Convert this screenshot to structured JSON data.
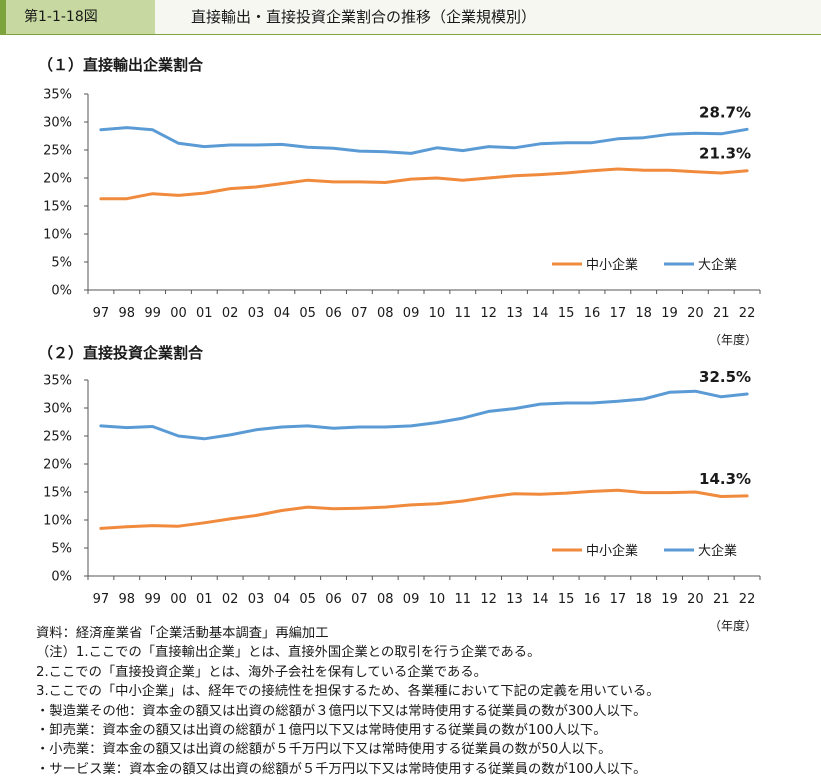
{
  "header": {
    "figure_number": "第1-1-18図",
    "title": "直接輸出・直接投資企業割合の推移（企業規模別）"
  },
  "colors": {
    "sme": "#f08a3c",
    "large": "#5b9bd5",
    "axis": "#555555",
    "text": "#1a1a1a"
  },
  "chart_data": [
    {
      "type": "line",
      "title": "（１）直接輸出企業割合",
      "categories": [
        "97",
        "98",
        "99",
        "00",
        "01",
        "02",
        "03",
        "04",
        "05",
        "06",
        "07",
        "08",
        "09",
        "10",
        "11",
        "12",
        "13",
        "14",
        "15",
        "16",
        "17",
        "18",
        "19",
        "20",
        "21",
        "22"
      ],
      "ylim": [
        0,
        35
      ],
      "yticks": [
        "0%",
        "5%",
        "10%",
        "15%",
        "20%",
        "25%",
        "30%",
        "35%"
      ],
      "xunit": "（年度）",
      "legend": "bottom-right",
      "series": [
        {
          "name": "中小企業",
          "color": "#f08a3c",
          "values": [
            16.3,
            16.3,
            17.2,
            16.9,
            17.3,
            18.1,
            18.4,
            19.0,
            19.6,
            19.3,
            19.3,
            19.2,
            19.8,
            20.0,
            19.6,
            20.0,
            20.4,
            20.6,
            20.9,
            21.3,
            21.6,
            21.4,
            21.4,
            21.1,
            20.9,
            21.3
          ],
          "end_label": "21.3%"
        },
        {
          "name": "大企業",
          "color": "#5b9bd5",
          "values": [
            28.6,
            29.0,
            28.6,
            26.2,
            25.6,
            25.9,
            25.9,
            26.0,
            25.5,
            25.3,
            24.8,
            24.7,
            24.4,
            25.4,
            24.9,
            25.6,
            25.4,
            26.1,
            26.3,
            26.3,
            27.0,
            27.2,
            27.8,
            28.0,
            27.9,
            28.7
          ],
          "end_label": "28.7%"
        }
      ]
    },
    {
      "type": "line",
      "title": "（２）直接投資企業割合",
      "categories": [
        "97",
        "98",
        "99",
        "00",
        "01",
        "02",
        "03",
        "04",
        "05",
        "06",
        "07",
        "08",
        "09",
        "10",
        "11",
        "12",
        "13",
        "14",
        "15",
        "16",
        "17",
        "18",
        "19",
        "20",
        "21",
        "22"
      ],
      "ylim": [
        0,
        35
      ],
      "yticks": [
        "0%",
        "5%",
        "10%",
        "15%",
        "20%",
        "25%",
        "30%",
        "35%"
      ],
      "xunit": "（年度）",
      "legend": "bottom-right",
      "series": [
        {
          "name": "中小企業",
          "color": "#f08a3c",
          "values": [
            8.5,
            8.8,
            9.0,
            8.9,
            9.5,
            10.2,
            10.8,
            11.7,
            12.3,
            12.0,
            12.1,
            12.3,
            12.7,
            12.9,
            13.4,
            14.1,
            14.7,
            14.6,
            14.8,
            15.1,
            15.3,
            14.9,
            14.9,
            15.0,
            14.2,
            14.3
          ],
          "end_label": "14.3%"
        },
        {
          "name": "大企業",
          "color": "#5b9bd5",
          "values": [
            26.8,
            26.5,
            26.7,
            25.0,
            24.5,
            25.2,
            26.1,
            26.6,
            26.8,
            26.4,
            26.6,
            26.6,
            26.8,
            27.4,
            28.2,
            29.4,
            29.9,
            30.7,
            30.9,
            30.9,
            31.2,
            31.6,
            32.8,
            33.0,
            32.0,
            32.5
          ],
          "end_label": "32.5%"
        }
      ]
    }
  ],
  "notes": [
    "資料：経済産業省「企業活動基本調査」再編加工",
    "（注）1.ここでの「直接輸出企業」とは、直接外国企業との取引を行う企業である。",
    "2.ここでの「直接投資企業」とは、海外子会社を保有している企業である。",
    "3.ここでの「中小企業」は、経年での接続性を担保するため、各業種において下記の定義を用いている。",
    "・製造業その他：資本金の額又は出資の総額が３億円以下又は常時使用する従業員の数が300人以下。",
    "・卸売業：資本金の額又は出資の総額が１億円以下又は常時使用する従業員の数が100人以下。",
    "・小売業：資本金の額又は出資の総額が５千万円以下又は常時使用する従業員の数が50人以下。",
    "・サービス業：資本金の額又は出資の総額が５千万円以下又は常時使用する従業員の数が100人以下。"
  ]
}
